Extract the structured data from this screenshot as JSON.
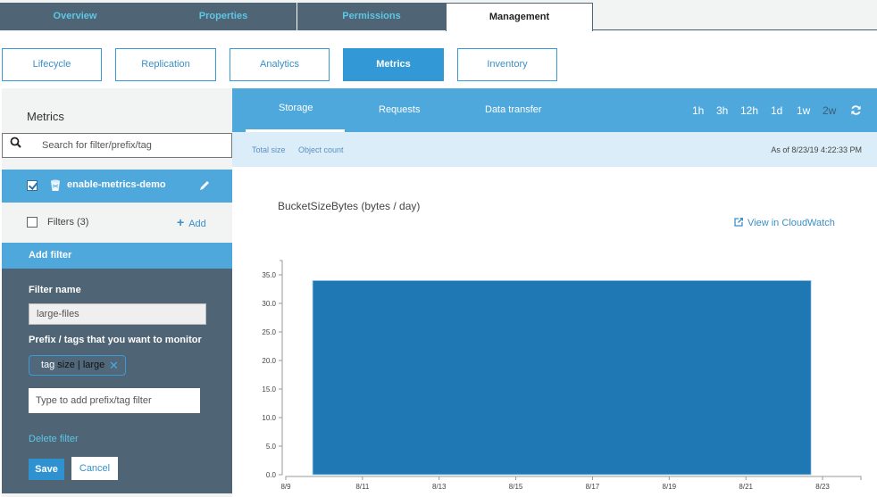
{
  "top_tabs": [
    {
      "label": "Overview",
      "active": false
    },
    {
      "label": "Properties",
      "active": false
    },
    {
      "label": "Permissions",
      "active": false
    },
    {
      "label": "Management",
      "active": true
    }
  ],
  "sub_nav": [
    {
      "label": "Lifecycle",
      "active": false
    },
    {
      "label": "Replication",
      "active": false
    },
    {
      "label": "Analytics",
      "active": false
    },
    {
      "label": "Metrics",
      "active": true
    },
    {
      "label": "Inventory",
      "active": false
    }
  ],
  "sidebar": {
    "title": "Metrics",
    "search": {
      "placeholder": "Search for filter/prefix/tag",
      "value": ""
    },
    "bucket": {
      "name": "enable-metrics-demo",
      "checked": true
    },
    "filters": {
      "label": "Filters (3)",
      "add_label": "Add",
      "checked": false
    },
    "add_filter": {
      "header": "Add filter",
      "filter_name_label": "Filter name",
      "filter_name_value": "large-files",
      "prefix_tags_label": "Prefix / tags that you want to monitor",
      "tag_chip": {
        "type": "tag",
        "value": "size | large"
      },
      "prefix_input_placeholder": "Type to add prefix/tag filter",
      "delete_label": "Delete filter",
      "save_label": "Save",
      "cancel_label": "Cancel"
    }
  },
  "metrics_tabs": [
    {
      "label": "Storage",
      "active": true
    },
    {
      "label": "Requests",
      "active": false
    },
    {
      "label": "Data transfer",
      "active": false
    }
  ],
  "time_ranges": [
    {
      "label": "1h",
      "active": false
    },
    {
      "label": "3h",
      "active": false
    },
    {
      "label": "12h",
      "active": false
    },
    {
      "label": "1d",
      "active": false
    },
    {
      "label": "1w",
      "active": false
    },
    {
      "label": "2w",
      "active": true
    }
  ],
  "subbar": {
    "links": [
      "Total size",
      "Object count"
    ],
    "as_of": "As of 8/23/19 4:22:33 PM"
  },
  "chart_header": {
    "title": "BucketSizeBytes (bytes / day)",
    "cloudwatch_link": "View in CloudWatch"
  },
  "colors": {
    "accent": "#4ea8dc",
    "dark_panel": "#4f6474",
    "bar": "#1f77b4",
    "link": "#3a8fc8"
  },
  "chart_data": {
    "type": "bar",
    "title": "BucketSizeBytes (bytes / day)",
    "xlabel": "",
    "ylabel": "",
    "x_ticks": [
      "8/9",
      "8/11",
      "8/13",
      "8/15",
      "8/17",
      "8/19",
      "8/21",
      "8/23"
    ],
    "y_ticks": [
      "0.0",
      "5.0",
      "10.0",
      "15.0",
      "20.0",
      "25.0",
      "30.0",
      "35.0"
    ],
    "ylim": [
      0,
      37.5
    ],
    "xlim_days": [
      9,
      24
    ],
    "series": [
      {
        "name": "BucketSizeBytes",
        "bars": [
          {
            "start": "8/9.7",
            "end": "8/22.7",
            "value": 34
          }
        ]
      }
    ],
    "grid": false,
    "legend": "none"
  }
}
